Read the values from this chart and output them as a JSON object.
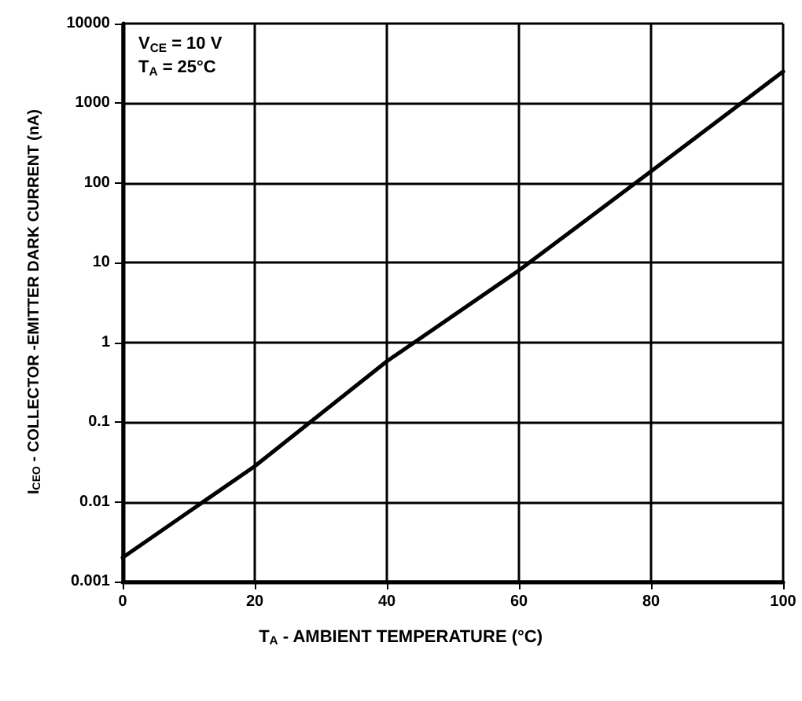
{
  "chart_data": {
    "type": "line",
    "xlabel": "T$_{A}$ - AMBIENT TEMPERATURE (°C)",
    "ylabel": "I$_{CEO}$ - COLLECTOR -EMITTER DARK CURRENT (nA)",
    "annotations": [
      "V$_{CE}$ = 10 V",
      "T$_{A}$ = 25°C"
    ],
    "x": [
      0,
      20,
      40,
      60,
      80,
      100
    ],
    "series": [
      {
        "color": "#000000",
        "values": [
          0.002,
          0.028,
          0.58,
          8,
          140,
          2500
        ]
      }
    ],
    "xlim": [
      0,
      100
    ],
    "xticks": [
      0,
      20,
      40,
      60,
      80,
      100
    ],
    "ylim": [
      0.001,
      10000
    ],
    "yticks": [
      0.001,
      0.01,
      0.1,
      1,
      10,
      100,
      1000,
      10000
    ],
    "log": "y",
    "grid": true,
    "marker": "none",
    "line_style": "solid"
  }
}
